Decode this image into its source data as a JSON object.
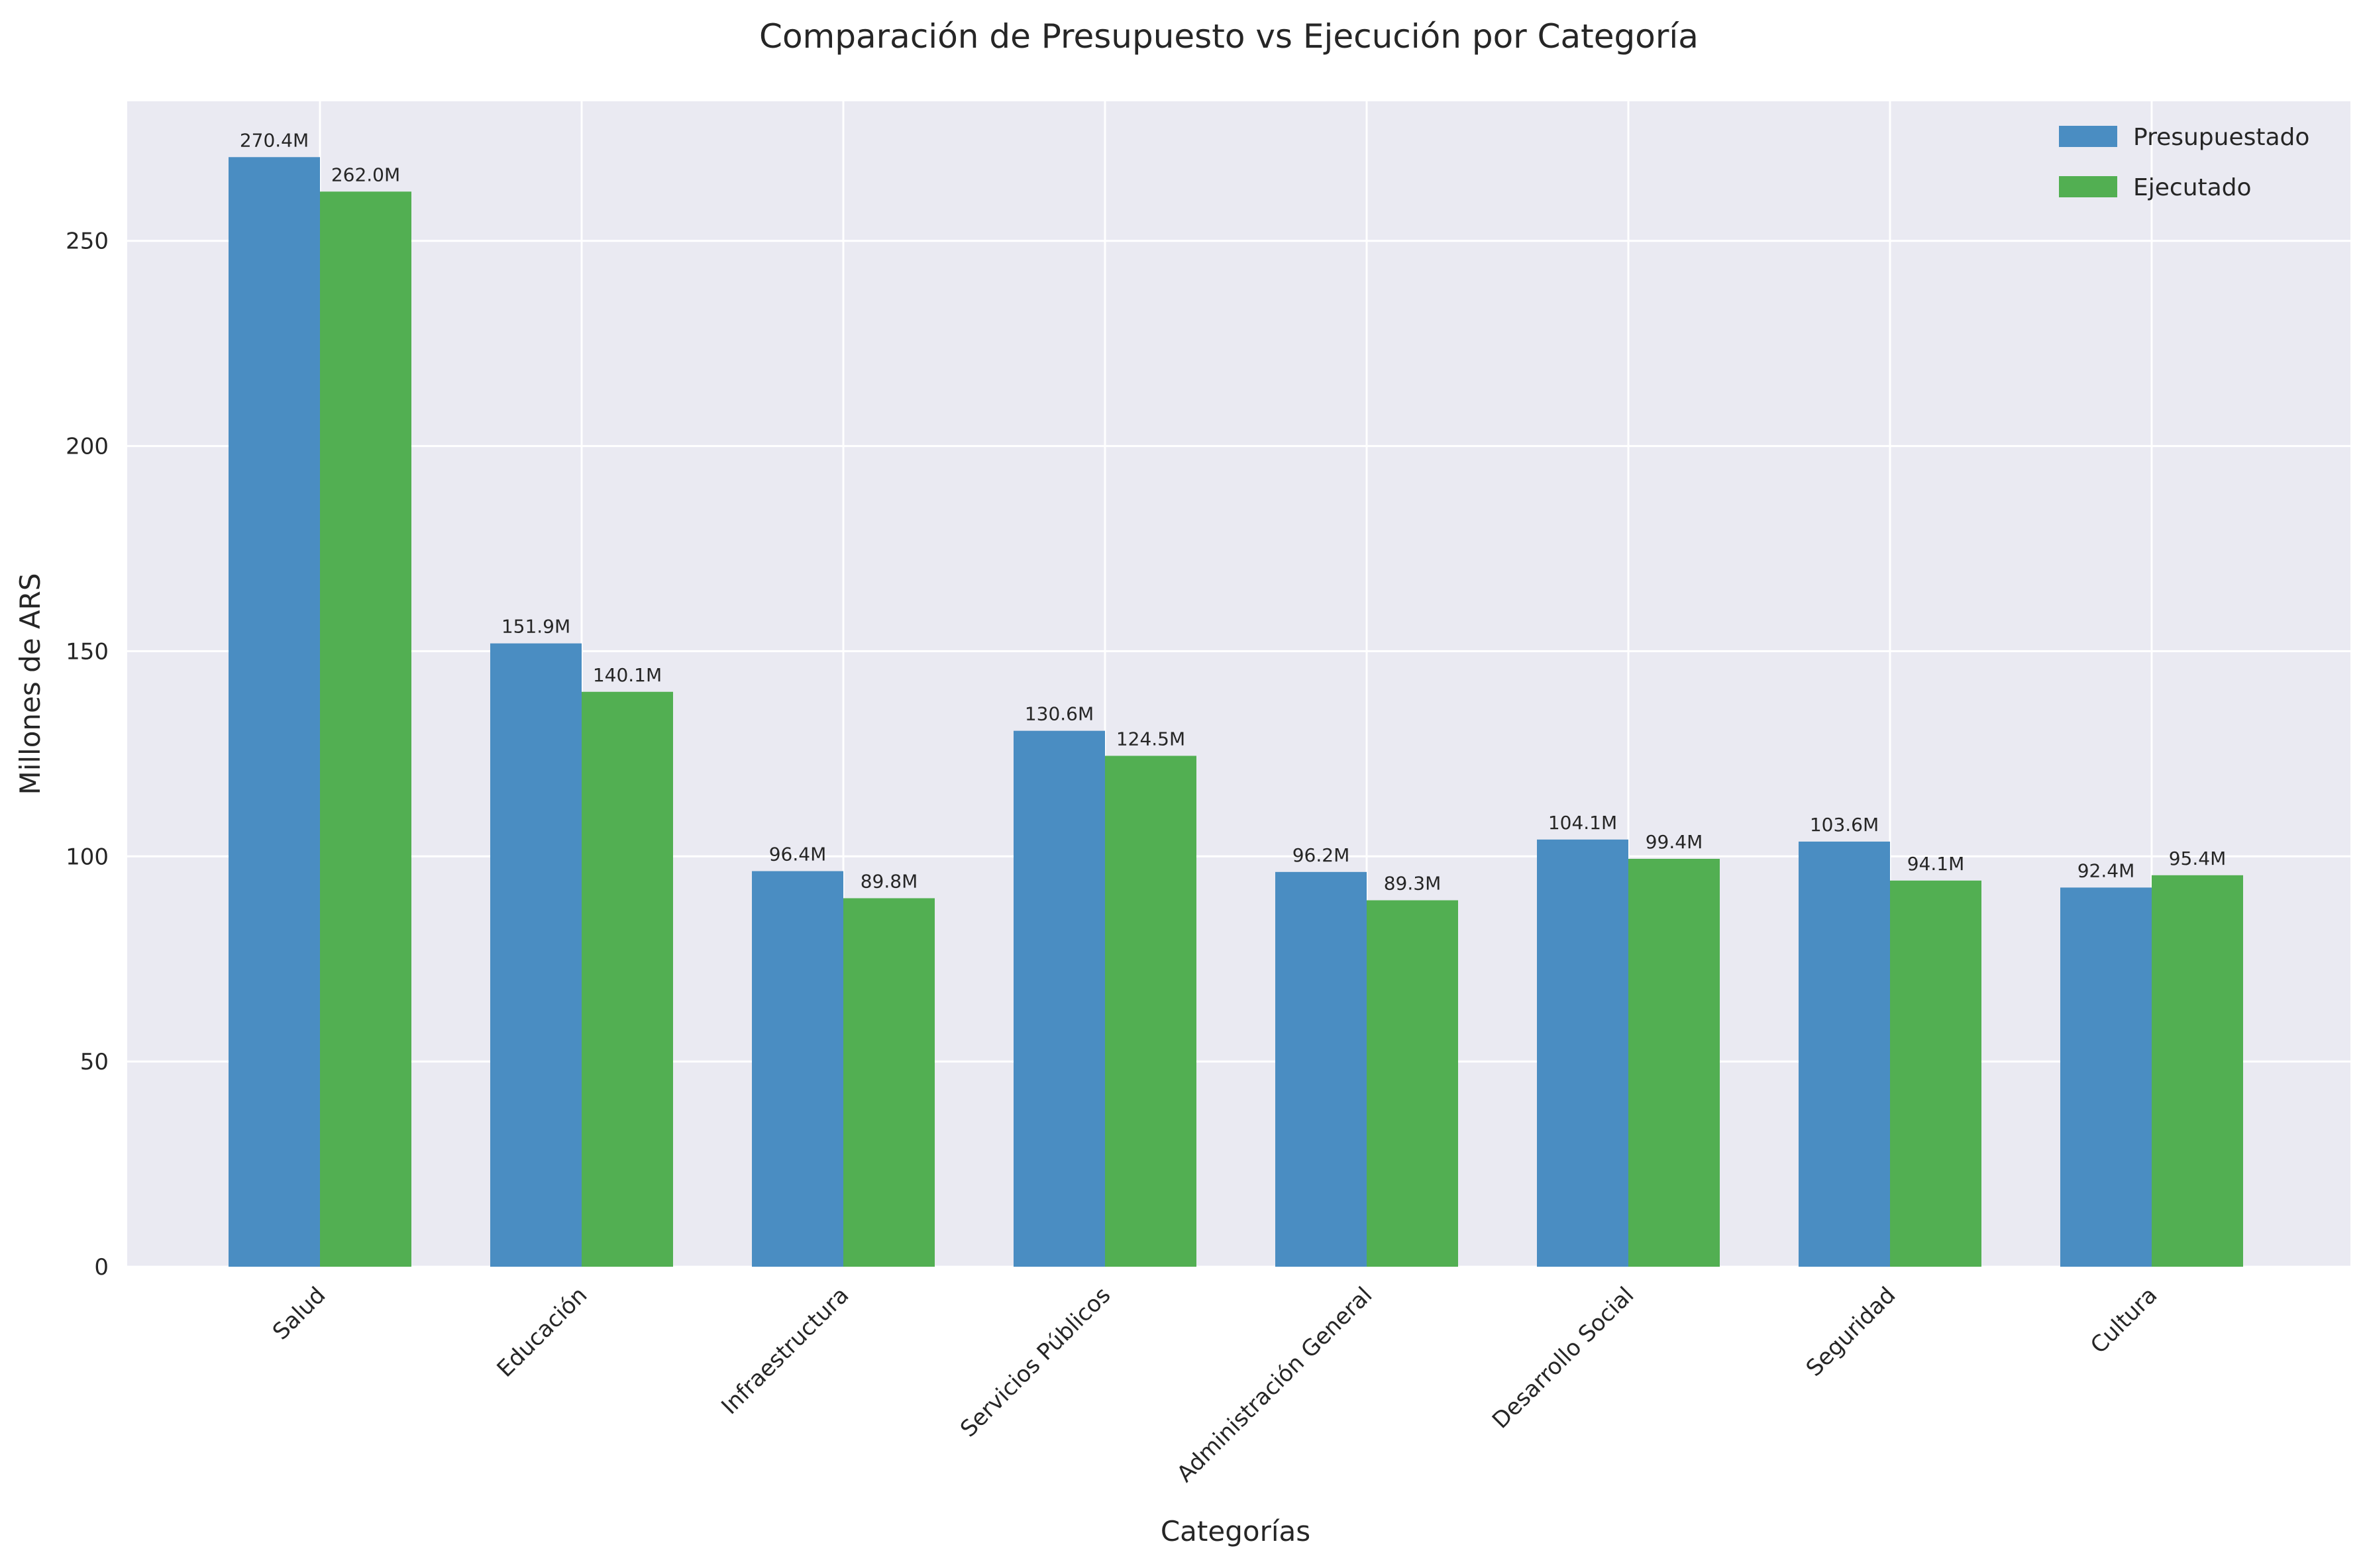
{
  "chart_data": {
    "type": "bar",
    "title": "Comparación de Presupuesto vs Ejecución por Categoría",
    "xlabel": "Categorías",
    "ylabel": "Millones de ARS",
    "categories": [
      "Salud",
      "Educación",
      "Infraestructura",
      "Servicios Públicos",
      "Administración General",
      "Desarrollo Social",
      "Seguridad",
      "Cultura"
    ],
    "series": [
      {
        "name": "Presupuestado",
        "color": "#4a8dc2",
        "values": [
          270.4,
          151.9,
          96.4,
          130.6,
          96.2,
          104.1,
          103.6,
          92.4
        ],
        "labels": [
          "270.4M",
          "151.9M",
          "96.4M",
          "130.6M",
          "96.2M",
          "104.1M",
          "103.6M",
          "92.4M"
        ]
      },
      {
        "name": "Ejecutado",
        "color": "#52af52",
        "values": [
          262.0,
          140.1,
          89.8,
          124.5,
          89.3,
          99.4,
          94.1,
          95.4
        ],
        "labels": [
          "262.0M",
          "140.1M",
          "89.8M",
          "124.5M",
          "89.3M",
          "99.4M",
          "94.1M",
          "95.4M"
        ]
      }
    ],
    "ylim": [
      0,
      284
    ],
    "yticks": [
      0,
      50,
      100,
      150,
      200,
      250
    ],
    "grid": true,
    "legend_position": "top-right",
    "plot_background": "#eaeaf2",
    "grid_color": "#ffffff"
  }
}
